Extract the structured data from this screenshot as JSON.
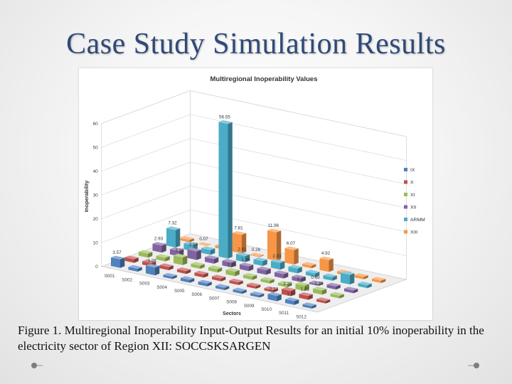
{
  "slide": {
    "title": "Case Study Simulation Results",
    "caption": "Figure 1. Multiregional Inoperability Input-Output Results for an initial 10% inoperability in the electricity sector of Region XII: SOCCSKSARGEN"
  },
  "chart_data": {
    "type": "bar3d",
    "title": "Multiregional Inoperability Values",
    "xlabel": "Sectors",
    "ylabel": "Inoperability",
    "ylim": [
      0,
      60
    ],
    "yticks": [
      0,
      10,
      20,
      30,
      40,
      50,
      60
    ],
    "categories": [
      "S001",
      "S002",
      "S003",
      "S004",
      "S005",
      "S006",
      "S007",
      "S008",
      "S009",
      "S010",
      "S011",
      "S012"
    ],
    "series": [
      {
        "name": "IX",
        "color": "#4f81bd",
        "values": [
          3.57,
          1.2,
          3.28,
          1.0,
          1.2,
          1.2,
          1.0,
          1.0,
          1.0,
          2.23,
          1.57,
          1.0
        ]
      },
      {
        "name": "X",
        "color": "#c0504d",
        "values": [
          1.5,
          1.4,
          1.3,
          1.2,
          1.3,
          1.2,
          1.1,
          1.0,
          1.0,
          2.2,
          1.61,
          1.0
        ]
      },
      {
        "name": "XI",
        "color": "#9bbb59",
        "values": [
          1.7,
          1.5,
          3.23,
          1.3,
          1.4,
          1.85,
          1.3,
          1.2,
          1.1,
          2.22,
          1.76,
          1.1
        ]
      },
      {
        "name": "XII",
        "color": "#8064a2",
        "values": [
          2.93,
          2.2,
          3.59,
          1.96,
          2.0,
          1.96,
          1.9,
          1.8,
          1.6,
          0.69,
          1.3,
          1.2
        ]
      },
      {
        "name": "ARMM",
        "color": "#4bacc6",
        "values": [
          7.32,
          2.5,
          2.0,
          56.55,
          2.61,
          2.0,
          2.83,
          2.0,
          1.5,
          1.5,
          4.0,
          1.2
        ]
      },
      {
        "name": "XIII",
        "color": "#f79646",
        "values": [
          1.0,
          0.07,
          1.0,
          7.81,
          0.26,
          11.96,
          6.07,
          1.0,
          4.92,
          1.0,
          1.0,
          1.0
        ]
      }
    ],
    "data_labels": [
      {
        "text": "3.57",
        "series": 0,
        "category": 0
      },
      {
        "text": "3.28",
        "series": 0,
        "category": 2
      },
      {
        "text": "2.23",
        "series": 0,
        "category": 9
      },
      {
        "text": "1.57",
        "series": 0,
        "category": 10
      },
      {
        "text": "2.20",
        "series": 1,
        "category": 9
      },
      {
        "text": "1.61",
        "series": 1,
        "category": 10
      },
      {
        "text": "3.23",
        "series": 2,
        "category": 2
      },
      {
        "text": "1.85",
        "series": 2,
        "category": 5
      },
      {
        "text": "2.22",
        "series": 2,
        "category": 9
      },
      {
        "text": "1.76",
        "series": 2,
        "category": 10
      },
      {
        "text": "2.93",
        "series": 3,
        "category": 0
      },
      {
        "text": "3.59",
        "series": 3,
        "category": 2
      },
      {
        "text": "1.96",
        "series": 3,
        "category": 5
      },
      {
        "text": "0.69",
        "series": 3,
        "category": 9
      },
      {
        "text": "7.32",
        "series": 4,
        "category": 0
      },
      {
        "text": "56.55",
        "series": 4,
        "category": 3
      },
      {
        "text": "2.61",
        "series": 4,
        "category": 4
      },
      {
        "text": "2.83",
        "series": 4,
        "category": 6
      },
      {
        "text": "0.07",
        "series": 5,
        "category": 1
      },
      {
        "text": "7.81",
        "series": 5,
        "category": 3
      },
      {
        "text": "0.26",
        "series": 5,
        "category": 4
      },
      {
        "text": "11.96",
        "series": 5,
        "category": 5
      },
      {
        "text": "6.07",
        "series": 5,
        "category": 6
      },
      {
        "text": "4.92",
        "series": 5,
        "category": 8
      }
    ],
    "legend_position": "right",
    "grid": true
  }
}
